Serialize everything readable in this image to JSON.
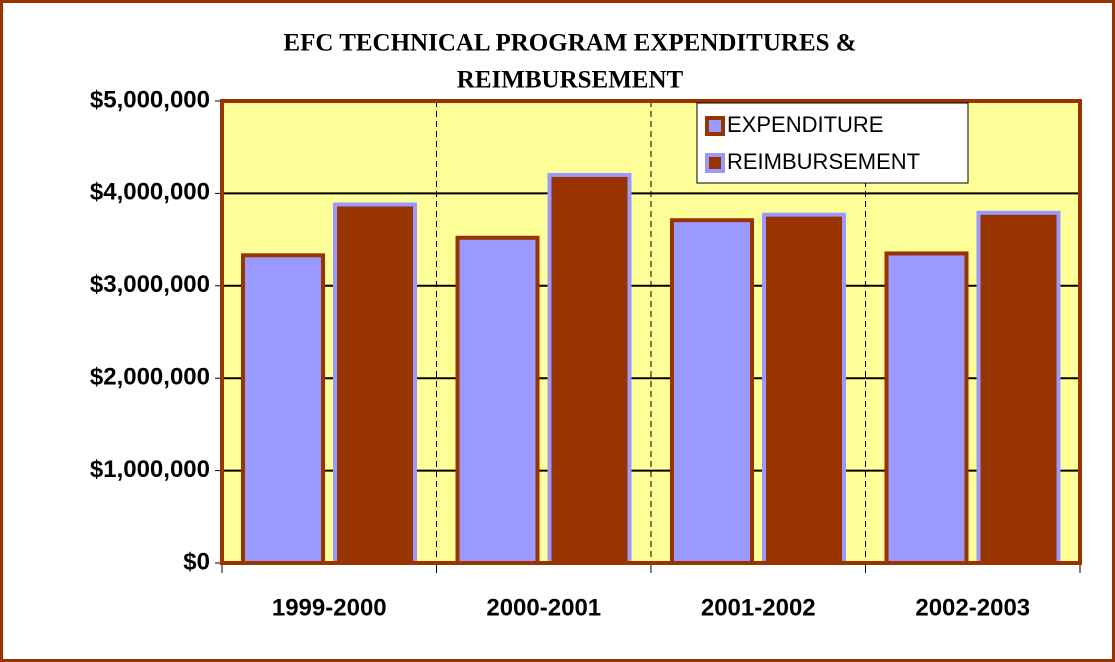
{
  "chart_data": {
    "type": "bar",
    "title": [
      "EFC TECHNICAL PROGRAM EXPENDITURES &",
      "REIMBURSEMENT"
    ],
    "categories": [
      "1999-2000",
      "2000-2001",
      "2001-2002",
      "2002-2003"
    ],
    "series": [
      {
        "name": "EXPENDITURE",
        "color": "#9999ff",
        "border": "#993300",
        "values": [
          3330000,
          3520000,
          3710000,
          3350000
        ]
      },
      {
        "name": "REIMBURSEMENT",
        "color": "#993300",
        "border": "#9999ff",
        "values": [
          3880000,
          4200000,
          3770000,
          3790000
        ]
      }
    ],
    "ylim": [
      0,
      5000000
    ],
    "yticks": [
      {
        "value": 0,
        "label": "$0"
      },
      {
        "value": 1000000,
        "label": "$1,000,000"
      },
      {
        "value": 2000000,
        "label": "$2,000,000"
      },
      {
        "value": 3000000,
        "label": "$3,000,000"
      },
      {
        "value": 4000000,
        "label": "$4,000,000"
      },
      {
        "value": 5000000,
        "label": "$5,000,000"
      }
    ],
    "grid": true,
    "legend": "top-right",
    "plot_background": "#ffff99"
  }
}
